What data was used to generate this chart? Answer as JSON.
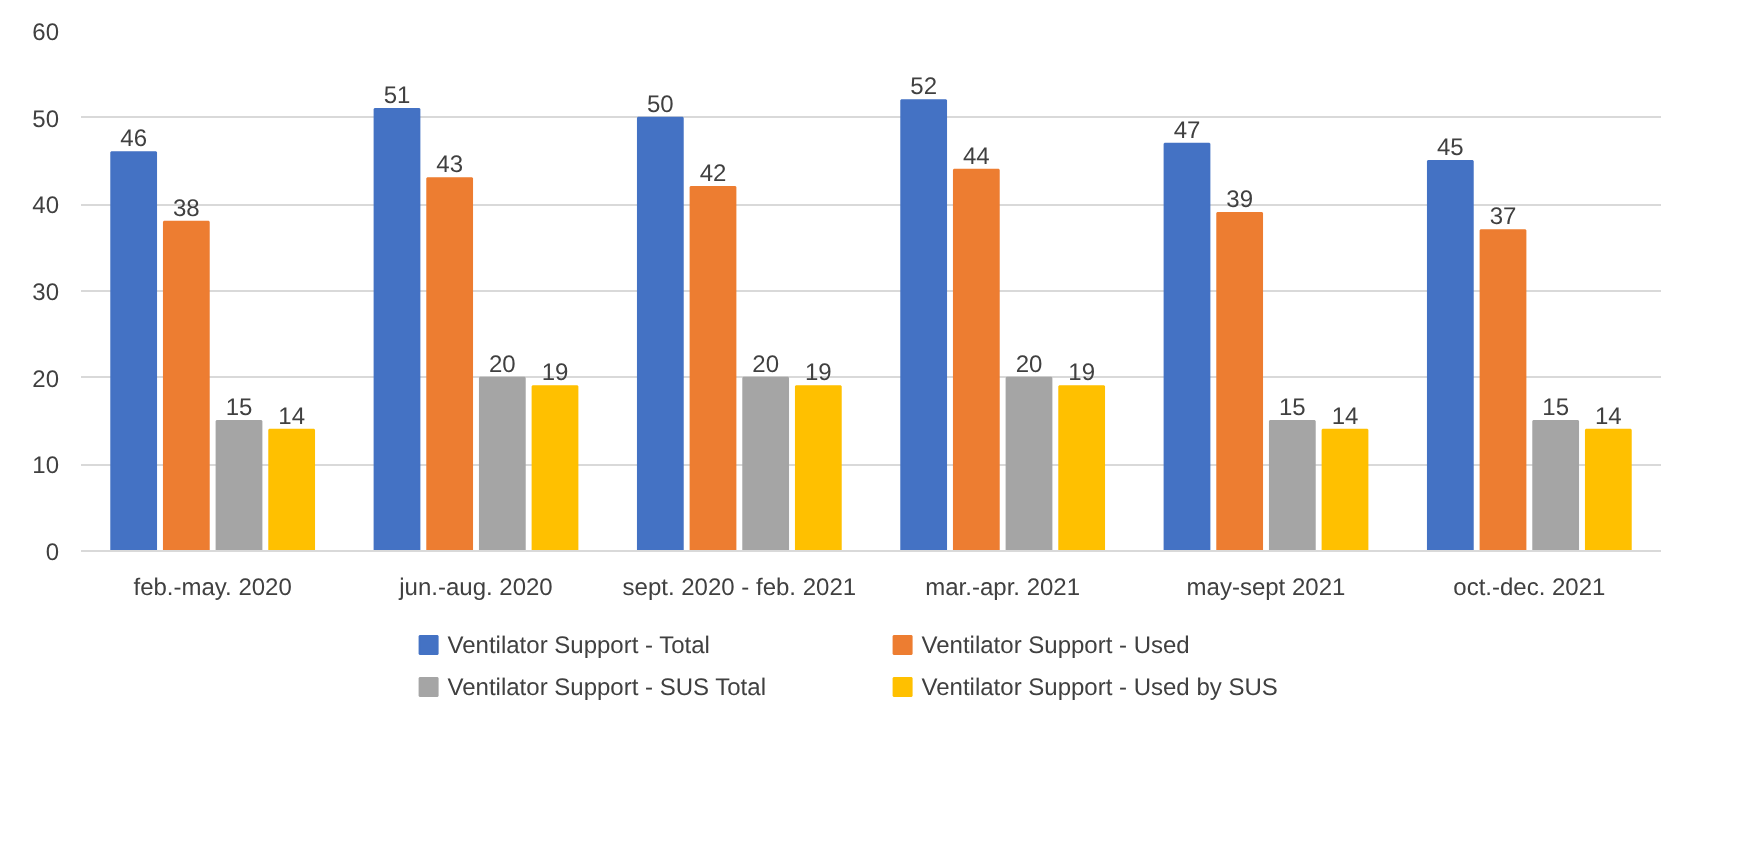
{
  "chart_data": {
    "type": "bar",
    "categories": [
      "feb.-may. 2020",
      "jun.-aug. 2020",
      "sept. 2020 - feb. 2021",
      "mar.-apr. 2021",
      "may-sept 2021",
      "oct.-dec. 2021"
    ],
    "series": [
      {
        "name": "Ventilator Support - Total",
        "color": "#4472c4",
        "values": [
          46,
          51,
          50,
          52,
          47,
          45
        ]
      },
      {
        "name": "Ventilator Support - Used",
        "color": "#ed7d31",
        "values": [
          38,
          43,
          42,
          44,
          39,
          37
        ]
      },
      {
        "name": "Ventilator Support - SUS Total",
        "color": "#a5a5a5",
        "values": [
          15,
          20,
          20,
          20,
          15,
          15
        ]
      },
      {
        "name": "Ventilator Support - Used by SUS",
        "color": "#ffc000",
        "values": [
          14,
          19,
          19,
          19,
          14,
          14
        ]
      }
    ],
    "ylim": [
      0,
      60
    ],
    "yticks": [
      0,
      10,
      20,
      30,
      40,
      50,
      60
    ],
    "grid": "y",
    "legend": "bottom",
    "data_labels": true
  }
}
